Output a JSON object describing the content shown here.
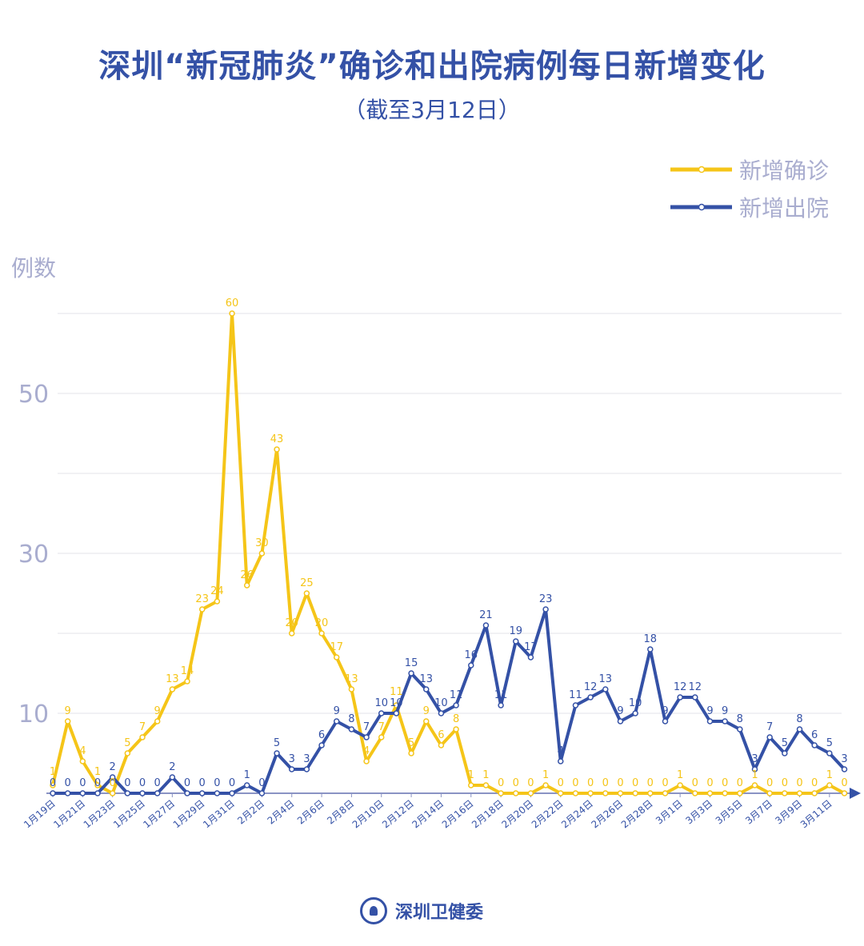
{
  "title": "深圳“新冠肺炎”确诊和出院病例每日新增变化",
  "subtitle": "（截至3月12日）",
  "footer": {
    "org": "深圳卫健委"
  },
  "chart_data": {
    "type": "line",
    "title": "深圳“新冠肺炎”确诊和出院病例每日新增变化",
    "subtitle": "（截至3月12日）",
    "ylabel": "例数",
    "xlabel": "",
    "ylim": [
      0,
      60
    ],
    "yticks": [
      10,
      30,
      50
    ],
    "grid": true,
    "legend": "top-right",
    "x": [
      "1月19日",
      "1月20日",
      "1月21日",
      "1月22日",
      "1月23日",
      "1月24日",
      "1月25日",
      "1月26日",
      "1月27日",
      "1月28日",
      "1月29日",
      "1月30日",
      "1月31日",
      "2月1日",
      "2月2日",
      "2月3日",
      "2月4日",
      "2月5日",
      "2月6日",
      "2月7日",
      "2月8日",
      "2月9日",
      "2月10日",
      "2月11日",
      "2月12日",
      "2月13日",
      "2月14日",
      "2月15日",
      "2月16日",
      "2月17日",
      "2月18日",
      "2月19日",
      "2月20日",
      "2月21日",
      "2月22日",
      "2月23日",
      "2月24日",
      "2月25日",
      "2月26日",
      "2月27日",
      "2月28日",
      "2月29日",
      "3月1日",
      "3月2日",
      "3月3日",
      "3月4日",
      "3月5日",
      "3月6日",
      "3月7日",
      "3月8日",
      "3月9日",
      "3月10日",
      "3月11日",
      "3月12日"
    ],
    "series": [
      {
        "name": "新增确诊",
        "color": "#f5c518",
        "values": [
          1,
          9,
          4,
          1,
          0,
          5,
          7,
          9,
          13,
          14,
          23,
          24,
          60,
          26,
          30,
          43,
          20,
          25,
          20,
          17,
          13,
          4,
          7,
          11,
          5,
          9,
          6,
          8,
          1,
          1,
          0,
          0,
          0,
          1,
          0,
          0,
          0,
          0,
          0,
          0,
          0,
          0,
          1,
          0,
          0,
          0,
          0,
          1,
          0,
          0,
          0,
          0,
          1,
          0
        ]
      },
      {
        "name": "新增出院",
        "color": "#3451a6",
        "values": [
          0,
          0,
          0,
          0,
          2,
          0,
          0,
          0,
          2,
          0,
          0,
          0,
          0,
          1,
          0,
          5,
          3,
          3,
          6,
          9,
          8,
          7,
          10,
          10,
          15,
          13,
          10,
          11,
          16,
          21,
          11,
          19,
          17,
          23,
          4,
          11,
          12,
          13,
          9,
          10,
          18,
          9,
          12,
          12,
          9,
          9,
          8,
          3,
          7,
          5,
          8,
          6,
          5,
          3
        ]
      }
    ]
  }
}
